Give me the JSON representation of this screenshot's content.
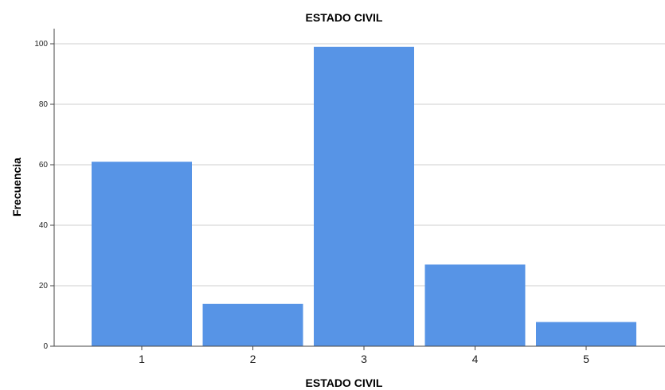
{
  "chart_data": {
    "type": "bar",
    "title": "ESTADO CIVIL",
    "xlabel": "ESTADO CIVIL",
    "ylabel": "Frecuencia",
    "categories": [
      "1",
      "2",
      "3",
      "4",
      "5"
    ],
    "values": [
      61,
      14,
      99,
      27,
      8
    ],
    "yticks": [
      0,
      20,
      40,
      60,
      80,
      100
    ],
    "ylim": [
      0,
      105
    ],
    "grid": true,
    "bar_color": "#5794e6",
    "grid_color": "#cfcfcf"
  }
}
